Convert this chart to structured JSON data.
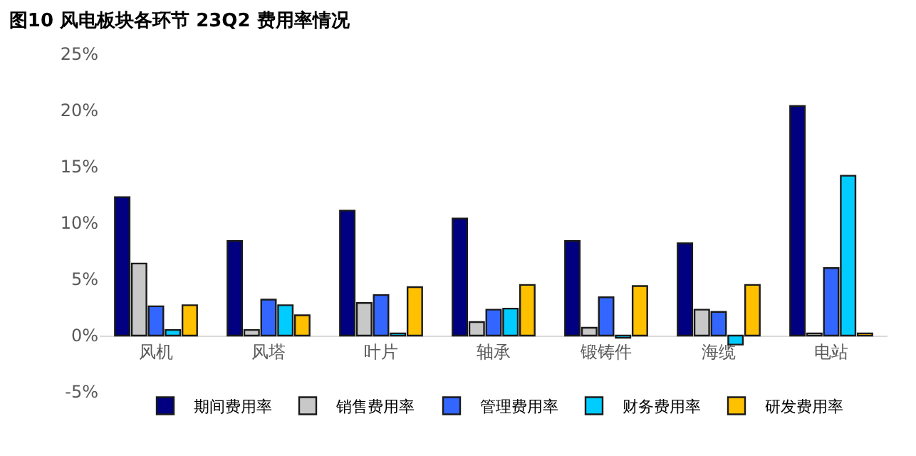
{
  "chart_data": {
    "type": "bar",
    "title": "图10 风电板块各环节 23Q2 费用率情况",
    "categories": [
      "风机",
      "风塔",
      "叶片",
      "轴承",
      "锻铸件",
      "海缆",
      "电站"
    ],
    "series": [
      {
        "name": "期间费用率",
        "color": "#000080",
        "values": [
          12.3,
          8.4,
          11.1,
          10.4,
          8.4,
          8.2,
          20.4
        ]
      },
      {
        "name": "销售费用率",
        "color": "#c8c8c8",
        "values": [
          6.4,
          0.5,
          2.9,
          1.2,
          0.7,
          2.3,
          0.2
        ]
      },
      {
        "name": "管理费用率",
        "color": "#3366ff",
        "values": [
          2.6,
          3.2,
          3.6,
          2.3,
          3.4,
          2.1,
          6.0
        ]
      },
      {
        "name": "财务费用率",
        "color": "#00ccff",
        "values": [
          0.5,
          2.7,
          0.2,
          2.4,
          -0.2,
          -0.8,
          14.2
        ]
      },
      {
        "name": "研发费用率",
        "color": "#ffc000",
        "values": [
          2.7,
          1.8,
          4.3,
          4.5,
          4.4,
          4.5,
          0.2
        ]
      }
    ],
    "ylim": [
      -5,
      25
    ],
    "yticks": [
      {
        "value": -5,
        "label": "-5%"
      },
      {
        "value": 0,
        "label": "0%"
      },
      {
        "value": 5,
        "label": "5%"
      },
      {
        "value": 10,
        "label": "10%"
      },
      {
        "value": 15,
        "label": "15%"
      },
      {
        "value": 20,
        "label": "20%"
      },
      {
        "value": 25,
        "label": "25%"
      }
    ],
    "legend": "bottom"
  }
}
